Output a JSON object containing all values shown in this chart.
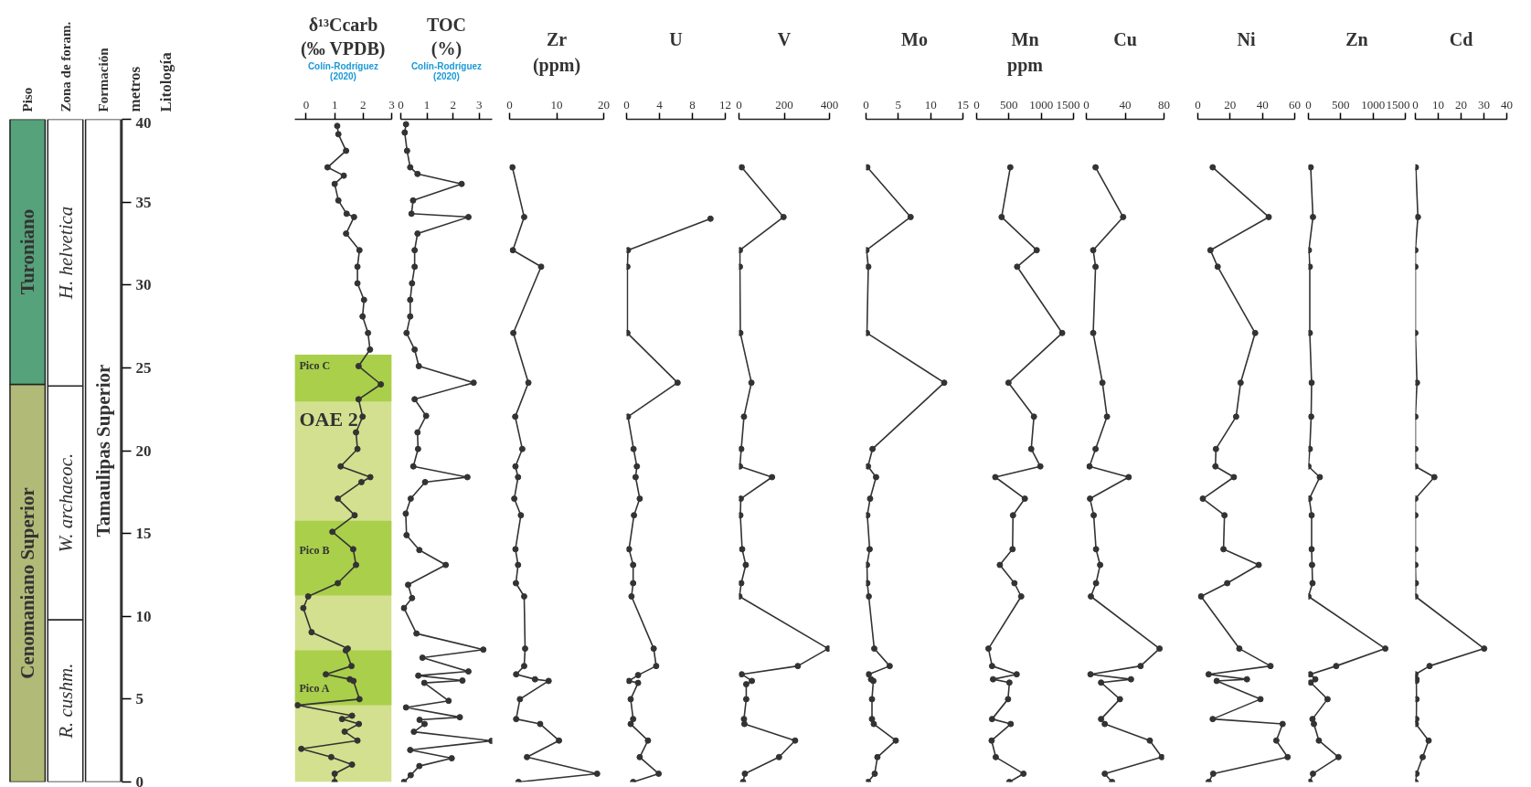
{
  "chart_data": [
    {
      "type": "bar",
      "stacked": true,
      "categories": [
        "Piso",
        "Zona de foram.",
        "Formación"
      ],
      "ylabel": "metros",
      "annotations": [
        "Litología"
      ],
      "ylim": [
        0,
        40
      ],
      "yticks": [
        0,
        5,
        10,
        15,
        20,
        25,
        30,
        35,
        40
      ],
      "series": [
        {
          "values": [
            24,
            9.8,
            40
          ],
          "colors": [
            "#b2ba78",
            "#ffffff",
            "#ffffff"
          ],
          "value_labels": [
            "Cenomaniano Superior",
            "R. cushm.",
            "Tamaulipas Superior"
          ]
        },
        {
          "values": [
            16,
            14.1,
            null
          ],
          "colors": [
            "#55a27b",
            "#ffffff",
            "#ffffff"
          ],
          "value_labels": [
            "Turoniano",
            "W. archaeoc.",
            null
          ]
        },
        {
          "values": [
            null,
            16.1,
            null
          ],
          "colors": [
            "#ffffff",
            "#ffffff",
            "#ffffff"
          ],
          "value_labels": [
            null,
            "H. helvetica",
            null
          ]
        }
      ]
    },
    {
      "type": "line",
      "title": "δ¹³Ccarb",
      "subtitle": "(‰ VPDB)",
      "annotations": [
        "Colín-Rodríguez (2020)"
      ],
      "xlim": [
        -0.4,
        3
      ],
      "xticks": [
        0,
        1,
        2,
        3
      ],
      "ylim": [
        0,
        40
      ],
      "tick_labels": "x",
      "marker": "circle",
      "line_style": "solid",
      "color": "#333333",
      "bands": [
        {
          "axis": "y",
          "from": 0,
          "to": 25.8,
          "label": "OAE 2",
          "color": "#d3e08f"
        },
        {
          "axis": "y",
          "from": 22.96,
          "to": 25.8,
          "label": "Pico C",
          "color": "#a9cf4b"
        },
        {
          "axis": "y",
          "from": 11.25,
          "to": 15.77,
          "label": "Pico B",
          "color": "#a9cf4b"
        },
        {
          "axis": "y",
          "from": 4.63,
          "to": 7.94,
          "label": "Pico A",
          "color": "#a9cf4b"
        }
      ],
      "x": [
        1.09,
        1.13,
        1.4,
        0.75,
        1.32,
        1.0,
        1.13,
        1.42,
        1.68,
        1.4,
        1.87,
        1.8,
        1.8,
        2.03,
        1.98,
        2.17,
        2.24,
        1.84,
        2.62,
        1.84,
        1.98,
        1.75,
        1.8,
        1.21,
        2.25,
        1.94,
        1.11,
        1.7,
        0.92,
        1.65,
        1.75,
        1.11,
        0.07,
        -0.1,
        0.19,
        1.46,
        1.39,
        1.59,
        0.69,
        1.53,
        1.66,
        1.87,
        -0.3,
        1.61,
        1.26,
        1.85,
        1.35,
        1.8,
        -0.17,
        0.88,
        1.61,
        1.0,
        1.0
      ],
      "values": [
        39.6,
        39.1,
        38.1,
        37.1,
        36.6,
        36.1,
        35.1,
        34.3,
        34.1,
        33.1,
        32.1,
        31.1,
        30.1,
        29.1,
        28.1,
        27.1,
        26.1,
        25.1,
        24.0,
        23.1,
        22.05,
        21.1,
        20.1,
        19.05,
        18.4,
        18.1,
        17.1,
        16.1,
        15.1,
        14.05,
        13.1,
        12.0,
        11.2,
        10.5,
        9.04,
        8.05,
        7.94,
        7.0,
        6.5,
        6.2,
        6.1,
        5.0,
        4.63,
        4.0,
        3.8,
        3.5,
        3.04,
        2.5,
        2.0,
        1.5,
        1.05,
        0.5,
        0.0
      ]
    },
    {
      "type": "line",
      "title": "TOC",
      "subtitle": "(%)",
      "annotations": [
        "Colín-Rodríguez (2020)"
      ],
      "xlim": [
        0,
        3.5
      ],
      "xticks": [
        0,
        1,
        2,
        3
      ],
      "ylim": [
        0,
        40
      ],
      "tick_labels": "x",
      "marker": "circle",
      "line_style": "solid",
      "color": "#333333",
      "x": [
        0.2,
        0.15,
        0.24,
        0.36,
        0.64,
        2.33,
        0.47,
        0.41,
        2.59,
        0.64,
        0.53,
        0.53,
        0.43,
        0.36,
        0.36,
        0.22,
        0.53,
        0.69,
        2.79,
        0.53,
        0.97,
        0.64,
        0.66,
        0.48,
        2.55,
        0.93,
        0.38,
        0.19,
        0.22,
        0.71,
        1.72,
        0.28,
        0.43,
        0.12,
        0.6,
        3.16,
        0.83,
        2.59,
        0.67,
        2.36,
        0.9,
        1.83,
        0.2,
        2.26,
        0.72,
        0.91,
        0.5,
        3.47,
        0.36,
        1.95,
        0.71,
        0.38,
        0.12
      ],
      "values": [
        39.7,
        39.2,
        38.1,
        37.1,
        36.7,
        36.1,
        35.1,
        34.3,
        34.1,
        33.1,
        32.1,
        31.1,
        30.1,
        29.1,
        28.1,
        27.1,
        26.1,
        25.1,
        24.1,
        23.1,
        22.1,
        21.1,
        20.1,
        19.05,
        18.4,
        18.1,
        17.1,
        16.2,
        14.9,
        14.0,
        13.1,
        11.9,
        11.1,
        10.5,
        8.96,
        7.99,
        7.5,
        6.67,
        6.42,
        6.12,
        5.98,
        4.9,
        4.5,
        3.91,
        3.75,
        3.5,
        3.03,
        2.48,
        1.93,
        1.43,
        0.96,
        0.41,
        0.0
      ]
    },
    {
      "type": "line",
      "title": "Zr",
      "subtitle": "(ppm)",
      "xlim": [
        0,
        20
      ],
      "xticks": [
        0,
        10,
        20
      ],
      "ylim": [
        0,
        40
      ],
      "tick_labels": "x",
      "marker": "circle",
      "line_style": "solid",
      "color": "#333333",
      "x": [
        0.6,
        3.1,
        0.7,
        6.7,
        0.8,
        4.0,
        1.2,
        2.7,
        1.25,
        1.8,
        1.0,
        2.4,
        1.25,
        1.8,
        1.35,
        3.1,
        3.3,
        3.1,
        1.4,
        5.4,
        8.3,
        2.2,
        1.4,
        6.5,
        10.5,
        3.7,
        18.6,
        1.9
      ],
      "values": [
        37.1,
        34.1,
        32.1,
        31.1,
        27.1,
        24.1,
        22.05,
        20.1,
        19.05,
        18.4,
        17.1,
        16.1,
        14.05,
        13.1,
        12.0,
        11.2,
        8.05,
        7.0,
        6.5,
        6.2,
        6.1,
        5.0,
        3.8,
        3.5,
        2.5,
        1.5,
        0.5,
        0.0
      ]
    },
    {
      "type": "line",
      "title": "U",
      "xlim": [
        0,
        12
      ],
      "xticks": [
        0,
        4,
        8,
        12
      ],
      "ylim": [
        0,
        40
      ],
      "tick_labels": "x",
      "marker": "circle",
      "line_style": "solid",
      "color": "#333333",
      "x": [
        10.2,
        0.17,
        0.1,
        0.1,
        6.2,
        0.17,
        0.85,
        1.25,
        1.1,
        1.6,
        0.9,
        0.3,
        0.8,
        0.8,
        0.6,
        3.3,
        3.6,
        1.4,
        0.3,
        1.4,
        0.5,
        0.8,
        0.5,
        2.6,
        1.6,
        3.9,
        0.8
      ],
      "values": [
        34.0,
        32.1,
        31.1,
        27.1,
        24.1,
        22.05,
        20.1,
        19.05,
        18.4,
        17.1,
        16.1,
        14.05,
        13.1,
        12.0,
        11.2,
        8.05,
        7.0,
        6.45,
        6.1,
        5.98,
        5.0,
        3.8,
        3.5,
        2.5,
        1.5,
        0.5,
        0.0
      ]
    },
    {
      "type": "line",
      "title": "V",
      "xlim": [
        0,
        400
      ],
      "xticks": [
        0,
        200,
        400
      ],
      "ylim": [
        0,
        40
      ],
      "tick_labels": "x",
      "marker": "circle",
      "line_style": "solid",
      "color": "#333333",
      "x": [
        12,
        197,
        4,
        4,
        6,
        55,
        22,
        10,
        4,
        146,
        8,
        6,
        14,
        30,
        10,
        2,
        394,
        260,
        12,
        57,
        32,
        32,
        22,
        24,
        248,
        177,
        26,
        18
      ],
      "values": [
        37.1,
        34.1,
        32.1,
        31.1,
        27.1,
        24.1,
        22.05,
        20.1,
        19.05,
        18.4,
        17.1,
        16.1,
        14.05,
        13.1,
        12.0,
        11.2,
        8.05,
        7.0,
        6.5,
        6.1,
        5.9,
        5.0,
        3.8,
        3.5,
        2.5,
        1.5,
        0.5,
        0.0
      ]
    },
    {
      "type": "line",
      "title": "Mo",
      "xlim": [
        0,
        15
      ],
      "xticks": [
        0,
        5,
        10,
        15
      ],
      "ylim": [
        0,
        40
      ],
      "tick_labels": "x",
      "marker": "circle",
      "line_style": "solid",
      "color": "#333333",
      "x": [
        0.2,
        6.9,
        0.07,
        0.35,
        0.14,
        12.1,
        1.0,
        0.3,
        1.55,
        0.63,
        0.2,
        0.56,
        0.14,
        0.2,
        0.42,
        1.27,
        3.66,
        0.42,
        0.77,
        1.13,
        0.92,
        0.92,
        1.2,
        4.6,
        1.76,
        1.34,
        0.3
      ],
      "values": [
        37.1,
        34.1,
        32.1,
        31.1,
        27.1,
        24.1,
        20.1,
        19.05,
        18.4,
        17.1,
        16.1,
        14.05,
        13.1,
        12.0,
        11.2,
        8.05,
        7.0,
        6.5,
        6.2,
        6.1,
        5.0,
        3.8,
        3.5,
        2.5,
        1.5,
        0.5,
        0.0
      ]
    },
    {
      "type": "line",
      "title": "Mn",
      "subtitle": "ppm",
      "xlim": [
        0,
        1500
      ],
      "xticks": [
        0,
        500,
        1000,
        1500
      ],
      "ylim": [
        0,
        40
      ],
      "tick_labels": "x",
      "marker": "circle",
      "line_style": "solid",
      "color": "#333333",
      "x": [
        521,
        387,
        930,
        627,
        1324,
        493,
        887,
        845,
        986,
        289,
        746,
        563,
        556,
        359,
        585,
        690,
        183,
        239,
        620,
        254,
        507,
        486,
        239,
        528,
        232,
        296,
        725,
        507
      ],
      "values": [
        37.1,
        34.1,
        32.1,
        31.1,
        27.1,
        24.1,
        22.05,
        20.1,
        19.05,
        18.4,
        17.1,
        16.1,
        14.05,
        13.1,
        12.0,
        11.2,
        8.05,
        7.0,
        6.5,
        6.2,
        6.0,
        5.0,
        3.8,
        3.5,
        2.5,
        1.5,
        0.5,
        0.0
      ]
    },
    {
      "type": "line",
      "title": "Cu",
      "xlim": [
        0,
        80
      ],
      "xticks": [
        0,
        40,
        80
      ],
      "ylim": [
        0,
        40
      ],
      "tick_labels": "x",
      "marker": "circle",
      "line_style": "solid",
      "color": "#333333",
      "x": [
        9.5,
        37.9,
        7.1,
        9.5,
        7.1,
        16.6,
        21.3,
        9.5,
        3.3,
        43.6,
        3.8,
        7.6,
        10,
        14.2,
        10,
        4.7,
        75.4,
        55.9,
        4.3,
        46,
        15.2,
        34.6,
        15.2,
        19,
        65.4,
        77.7,
        19,
        26.5
      ],
      "values": [
        37.1,
        34.1,
        32.1,
        31.1,
        27.1,
        24.1,
        22.05,
        20.1,
        19.05,
        18.4,
        17.1,
        16.1,
        14.05,
        13.1,
        12.0,
        11.2,
        8.05,
        7.0,
        6.5,
        6.2,
        6.0,
        5.0,
        3.8,
        3.5,
        2.5,
        1.5,
        0.5,
        0.0
      ]
    },
    {
      "type": "line",
      "title": "Ni",
      "xlim": [
        0,
        60
      ],
      "xticks": [
        0,
        20,
        40,
        60
      ],
      "ylim": [
        0,
        40
      ],
      "tick_labels": "x",
      "marker": "circle",
      "line_style": "solid",
      "color": "#333333",
      "x": [
        9.2,
        43.9,
        7.8,
        12.3,
        35.5,
        26.5,
        23.7,
        11.2,
        10.9,
        22.3,
        3.1,
        16.5,
        15.9,
        37.7,
        18.2,
        2.0,
        25.7,
        45,
        6.7,
        30.4,
        11.7,
        38.8,
        9.2,
        52.5,
        48.6,
        55.6,
        9.5,
        6.7
      ],
      "values": [
        37.1,
        34.1,
        32.1,
        31.1,
        27.1,
        24.1,
        22.05,
        20.1,
        19.05,
        18.4,
        17.1,
        16.1,
        14.05,
        13.1,
        12.0,
        11.2,
        8.05,
        7.0,
        6.5,
        6.2,
        6.1,
        5.0,
        3.8,
        3.5,
        2.5,
        1.5,
        0.5,
        0.0
      ]
    },
    {
      "type": "line",
      "title": "Zn",
      "xlim": [
        0,
        1500
      ],
      "xticks": [
        0,
        500,
        1000,
        1500
      ],
      "ylim": [
        0,
        40
      ],
      "tick_labels": "x",
      "marker": "circle",
      "line_style": "solid",
      "color": "#333333",
      "x": [
        35,
        70,
        7,
        21,
        21,
        49,
        42,
        21,
        0,
        176,
        14,
        49,
        49,
        56,
        63,
        0,
        1190,
        430,
        28,
        106,
        35,
        296,
        63,
        85,
        162,
        465,
        70,
        21
      ],
      "values": [
        37.1,
        34.1,
        32.1,
        31.1,
        27.1,
        24.1,
        22.05,
        20.1,
        19.05,
        18.4,
        17.1,
        16.1,
        14.05,
        13.1,
        12.0,
        11.2,
        8.05,
        7.0,
        6.5,
        6.2,
        6.0,
        5.0,
        3.8,
        3.5,
        2.5,
        1.5,
        0.5,
        0.0
      ]
    },
    {
      "type": "line",
      "title": "Cd",
      "xlim": [
        0,
        40
      ],
      "xticks": [
        0,
        10,
        20,
        30,
        40
      ],
      "ylim": [
        0,
        40
      ],
      "tick_labels": "x",
      "marker": "circle",
      "line_style": "solid",
      "color": "#333333",
      "x": [
        0.2,
        1.1,
        0,
        0,
        0,
        0.7,
        0,
        0,
        0,
        8.3,
        0,
        0,
        0,
        0,
        0.2,
        0,
        30.1,
        6.2,
        0,
        0.5,
        0.4,
        0.5,
        0.4,
        0.2,
        5.8,
        3.2,
        0.5,
        0
      ],
      "values": [
        37.1,
        34.1,
        32.1,
        31.1,
        27.1,
        24.1,
        22.05,
        20.1,
        19.05,
        18.4,
        17.1,
        16.1,
        14.05,
        13.1,
        12.0,
        11.2,
        8.05,
        7.0,
        6.5,
        6.2,
        6.1,
        5.0,
        3.8,
        3.5,
        2.5,
        1.5,
        0.5,
        0.0
      ]
    }
  ]
}
